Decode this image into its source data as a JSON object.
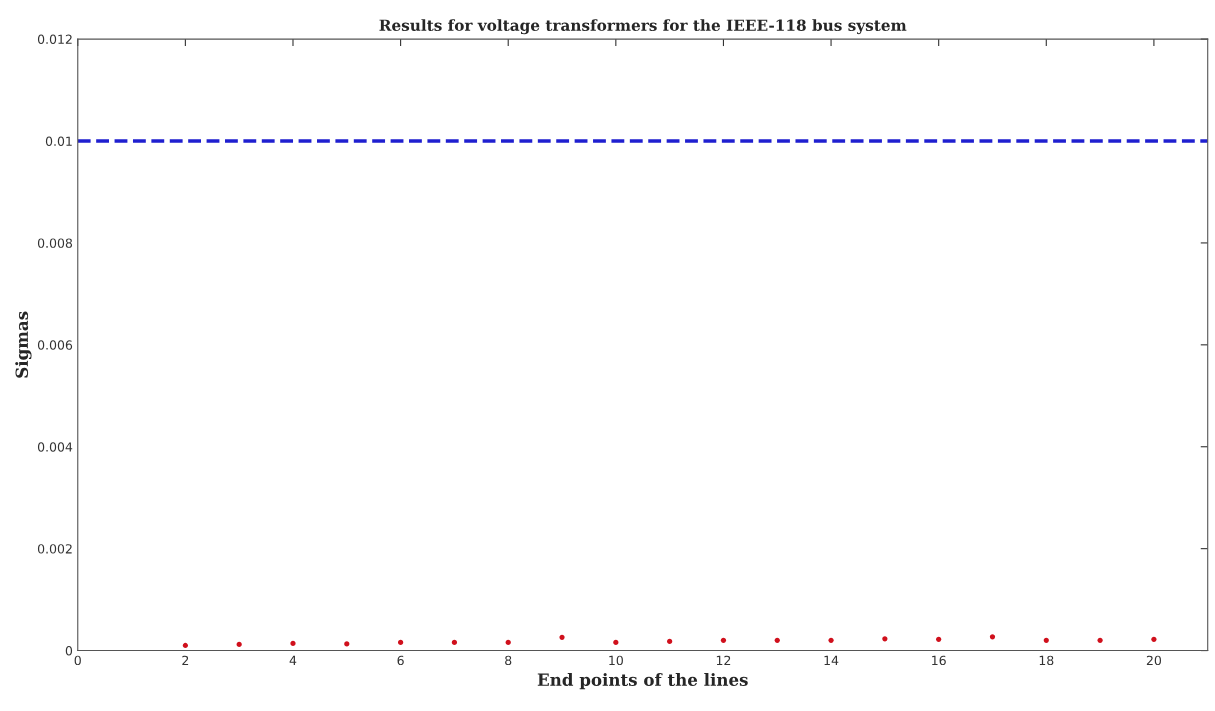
{
  "chart_data": {
    "type": "scatter",
    "title": "Results for voltage transformers for the IEEE-118 bus system",
    "xlabel": "End points of the lines",
    "ylabel": "Sigmas",
    "x": [
      2,
      3,
      4,
      5,
      6,
      7,
      8,
      9,
      10,
      11,
      12,
      13,
      14,
      15,
      16,
      17,
      18,
      19,
      20
    ],
    "series": [
      {
        "color": "#d0101c",
        "values": [
          0.0001,
          0.00012,
          0.00014,
          0.00013,
          0.00016,
          0.00016,
          0.00016,
          0.00026,
          0.00016,
          0.00018,
          0.0002,
          0.0002,
          0.0002,
          0.00023,
          0.00022,
          0.00027,
          0.0002,
          0.0002,
          0.00022
        ]
      }
    ],
    "marker": "circle",
    "ref_lines": [
      {
        "axis": "y",
        "value": 0.01,
        "color": "#1f1fd0",
        "line_style": "dashed"
      }
    ],
    "xlim": [
      0,
      21
    ],
    "xticks": [
      0,
      2,
      4,
      6,
      8,
      10,
      12,
      14,
      16,
      18,
      20
    ],
    "ylim": [
      0,
      0.012
    ],
    "yticks": [
      0,
      0.002,
      0.004,
      0.006,
      0.008,
      0.01,
      0.012
    ],
    "grid": false,
    "legend": false
  }
}
